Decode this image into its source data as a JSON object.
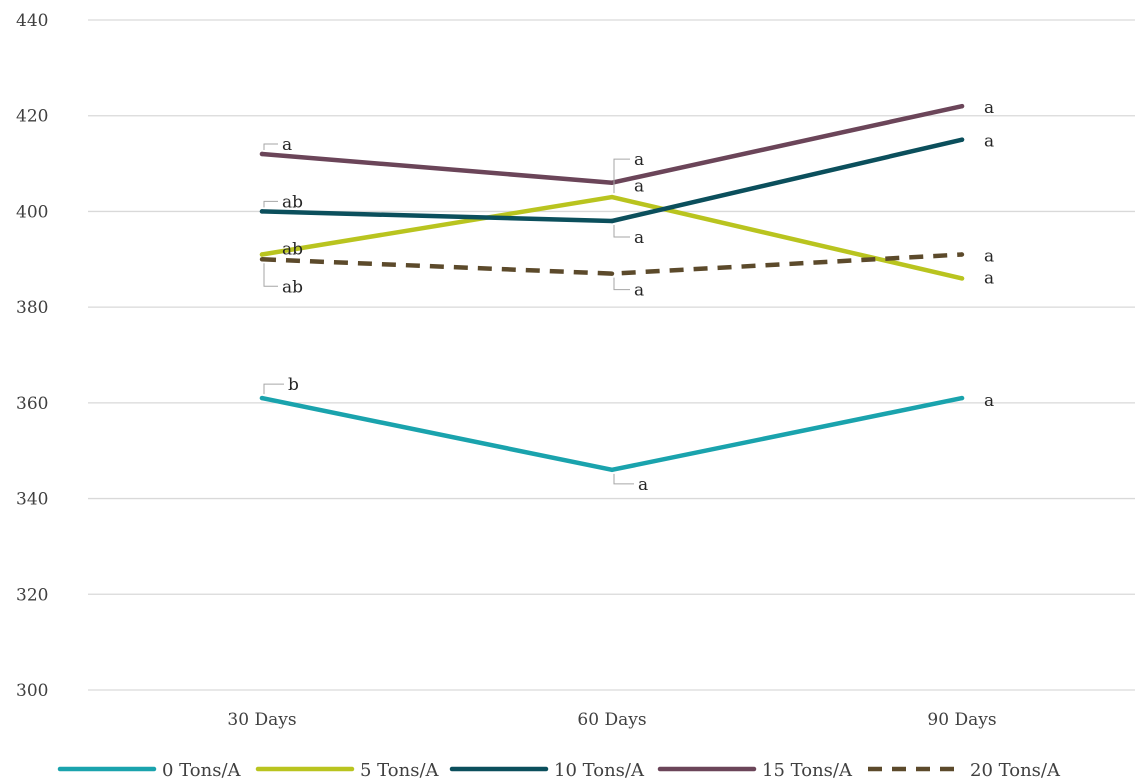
{
  "chart_data": {
    "type": "line",
    "title": "",
    "xlabel": "",
    "ylabel": "",
    "categories": [
      "30 Days",
      "60 Days",
      "90 Days"
    ],
    "ylim": [
      300,
      440
    ],
    "yticks": [
      300,
      320,
      340,
      360,
      380,
      400,
      420,
      440
    ],
    "grid": true,
    "legend_position": "bottom",
    "series": [
      {
        "name": "0 Tons/A",
        "values": [
          361,
          346,
          361
        ],
        "color": "#1aa3ad",
        "dashed": false,
        "labels": [
          "b",
          "a",
          "a"
        ]
      },
      {
        "name": "5 Tons/A",
        "values": [
          391,
          403,
          386
        ],
        "color": "#b9c41f",
        "dashed": false,
        "labels": [
          "ab",
          "a",
          "a"
        ]
      },
      {
        "name": "10 Tons/A",
        "values": [
          400,
          398,
          415
        ],
        "color": "#0b4f5c",
        "dashed": false,
        "labels": [
          "ab",
          "a",
          "a"
        ]
      },
      {
        "name": "15 Tons/A",
        "values": [
          412,
          406,
          422
        ],
        "color": "#6b4559",
        "dashed": false,
        "labels": [
          "a",
          "a",
          "a"
        ]
      },
      {
        "name": "20 Tons/A",
        "values": [
          390,
          387,
          391
        ],
        "color": "#5c4a2b",
        "dashed": true,
        "labels": [
          "ab",
          "a",
          "a"
        ]
      }
    ]
  }
}
